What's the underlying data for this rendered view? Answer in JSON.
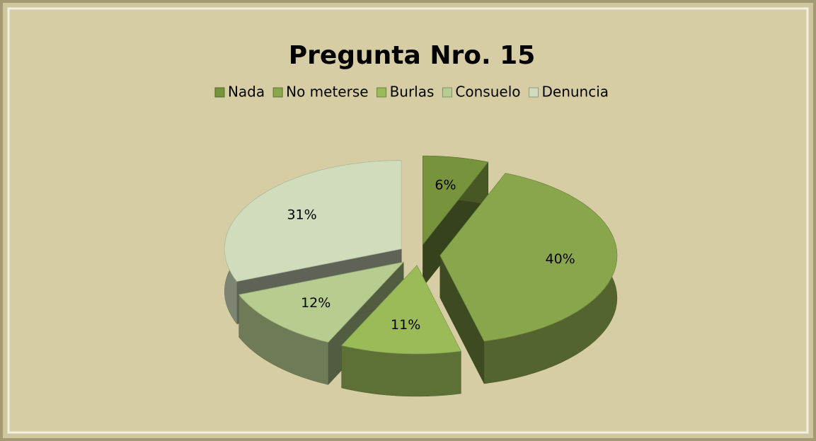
{
  "chart_data": {
    "type": "pie3d",
    "title": "Pregunta Nro. 15",
    "categories": [
      "Nada",
      "No meterse",
      "Burlas",
      "Consuelo",
      "Denuncia"
    ],
    "values": [
      6,
      40,
      11,
      12,
      31
    ],
    "value_labels": [
      "6%",
      "40%",
      "11%",
      "12%",
      "31%"
    ],
    "colors": [
      "#77933c",
      "#8aa64c",
      "#9bbb59",
      "#b7cd8f",
      "#d0dcbc"
    ],
    "legend": "top"
  }
}
